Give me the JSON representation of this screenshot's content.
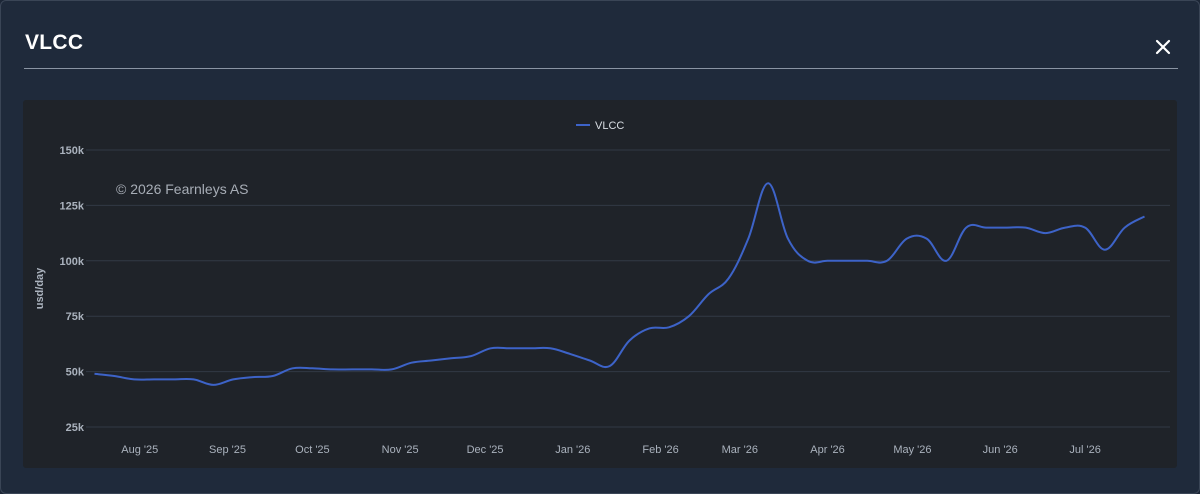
{
  "modal": {
    "title": "VLCC",
    "close_icon": "close-icon"
  },
  "chart_data": {
    "type": "line",
    "ylabel": "usd/day",
    "credit": "© 2026 Fearnleys AS",
    "legend_position": "top-center",
    "grid": true,
    "ylim": [
      25000,
      150000
    ],
    "yticks": [
      25000,
      50000,
      75000,
      100000,
      125000,
      150000
    ],
    "ytick_labels": [
      "25k",
      "50k",
      "75k",
      "100k",
      "125k",
      "150k"
    ],
    "xlim": [
      "2025-07-13",
      "2026-07-31"
    ],
    "xticks": [
      "2025-08-01",
      "2025-09-01",
      "2025-10-01",
      "2025-11-01",
      "2025-12-01",
      "2026-01-01",
      "2026-02-01",
      "2026-03-01",
      "2026-04-01",
      "2026-05-01",
      "2026-06-01",
      "2026-07-01"
    ],
    "xtick_labels": [
      "Aug '25",
      "Sep '25",
      "Oct '25",
      "Nov '25",
      "Dec '25",
      "Jan '26",
      "Feb '26",
      "Mar '26",
      "Apr '26",
      "May '26",
      "Jun '26",
      "Jul '26"
    ],
    "series": [
      {
        "name": "VLCC",
        "color": "#3d63c8",
        "points": [
          [
            "2025-07-16",
            49000
          ],
          [
            "2025-07-23",
            48000
          ],
          [
            "2025-07-30",
            46500
          ],
          [
            "2025-08-06",
            46500
          ],
          [
            "2025-08-13",
            46500
          ],
          [
            "2025-08-20",
            46500
          ],
          [
            "2025-08-27",
            44000
          ],
          [
            "2025-09-03",
            46500
          ],
          [
            "2025-09-10",
            47500
          ],
          [
            "2025-09-17",
            48000
          ],
          [
            "2025-09-24",
            51500
          ],
          [
            "2025-10-01",
            51500
          ],
          [
            "2025-10-08",
            51000
          ],
          [
            "2025-10-15",
            51000
          ],
          [
            "2025-10-22",
            51000
          ],
          [
            "2025-10-29",
            51000
          ],
          [
            "2025-11-05",
            54000
          ],
          [
            "2025-11-12",
            55000
          ],
          [
            "2025-11-19",
            56000
          ],
          [
            "2025-11-26",
            57000
          ],
          [
            "2025-12-03",
            60500
          ],
          [
            "2025-12-10",
            60500
          ],
          [
            "2025-12-17",
            60500
          ],
          [
            "2025-12-24",
            60500
          ],
          [
            "2025-12-31",
            58000
          ],
          [
            "2026-01-07",
            55000
          ],
          [
            "2026-01-14",
            52500
          ],
          [
            "2026-01-21",
            64000
          ],
          [
            "2026-01-28",
            69500
          ],
          [
            "2026-02-04",
            70000
          ],
          [
            "2026-02-11",
            75000
          ],
          [
            "2026-02-18",
            85000
          ],
          [
            "2026-02-25",
            92000
          ],
          [
            "2026-03-04",
            110000
          ],
          [
            "2026-03-11",
            135000
          ],
          [
            "2026-03-18",
            110000
          ],
          [
            "2026-03-25",
            100000
          ],
          [
            "2026-04-01",
            100000
          ],
          [
            "2026-04-08",
            100000
          ],
          [
            "2026-04-15",
            100000
          ],
          [
            "2026-04-22",
            100000
          ],
          [
            "2026-04-29",
            110000
          ],
          [
            "2026-05-06",
            110000
          ],
          [
            "2026-05-13",
            100000
          ],
          [
            "2026-05-20",
            115000
          ],
          [
            "2026-05-27",
            115000
          ],
          [
            "2026-06-03",
            115000
          ],
          [
            "2026-06-10",
            115000
          ],
          [
            "2026-06-17",
            112500
          ],
          [
            "2026-06-24",
            115000
          ],
          [
            "2026-07-01",
            115000
          ],
          [
            "2026-07-08",
            105000
          ],
          [
            "2026-07-15",
            115000
          ],
          [
            "2026-07-22",
            120000
          ]
        ]
      }
    ]
  }
}
